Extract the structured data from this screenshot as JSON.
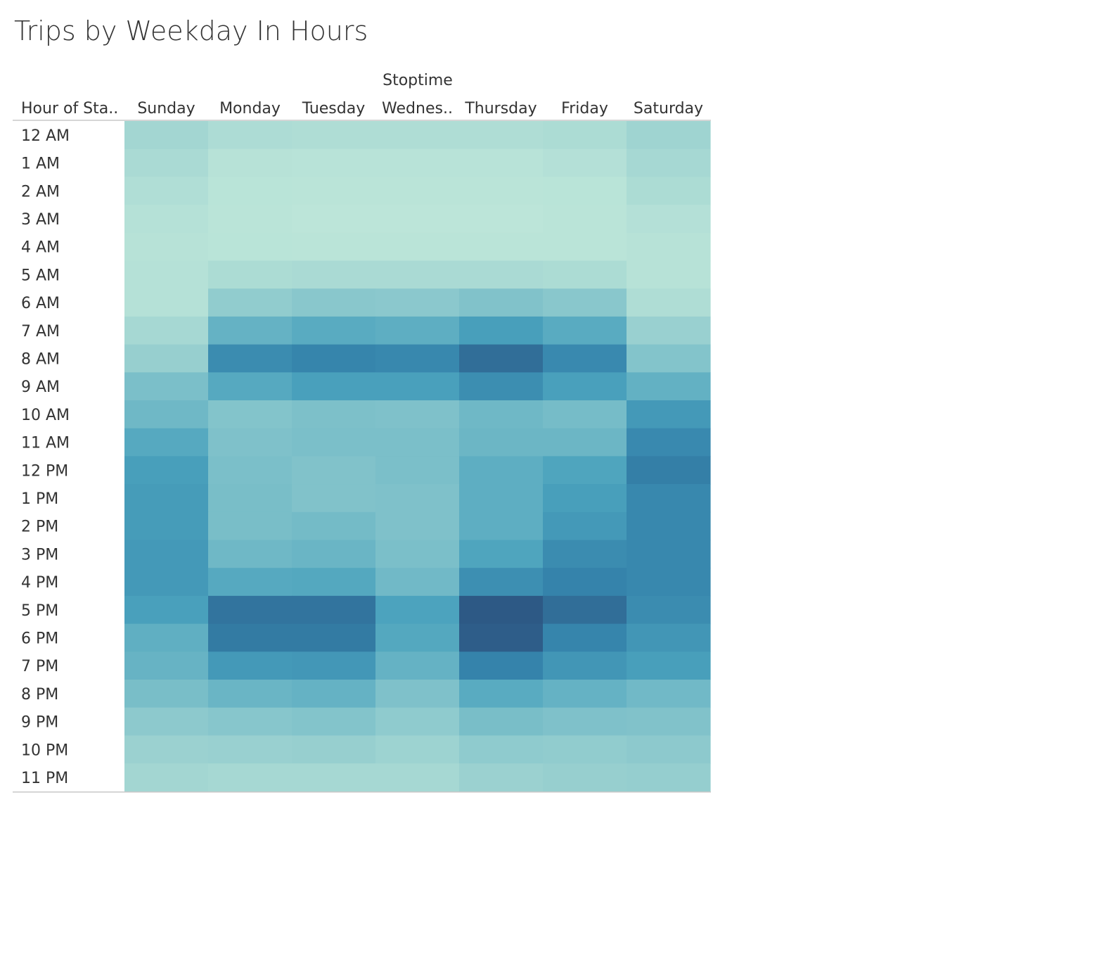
{
  "chart_data": {
    "type": "heatmap",
    "title": "Trips by Weekday In Hours",
    "column_group_label": "Stoptime",
    "row_field_label": "Hour of Sta..",
    "columns": [
      "Sunday",
      "Monday",
      "Tuesday",
      "Wednes..",
      "Thursday",
      "Friday",
      "Saturday"
    ],
    "rows": [
      "12 AM",
      "1 AM",
      "2 AM",
      "3 AM",
      "4 AM",
      "5 AM",
      "6 AM",
      "7 AM",
      "8 AM",
      "9 AM",
      "10 AM",
      "11 AM",
      "12 PM",
      "1 PM",
      "2 PM",
      "3 PM",
      "4 PM",
      "5 PM",
      "6 PM",
      "7 PM",
      "8 PM",
      "9 PM",
      "10 PM",
      "11 PM"
    ],
    "values": [
      [
        0.2,
        0.12,
        0.11,
        0.11,
        0.11,
        0.13,
        0.22
      ],
      [
        0.15,
        0.05,
        0.04,
        0.04,
        0.04,
        0.07,
        0.18
      ],
      [
        0.1,
        0.03,
        0.02,
        0.02,
        0.02,
        0.03,
        0.13
      ],
      [
        0.06,
        0.02,
        0.01,
        0.01,
        0.01,
        0.02,
        0.07
      ],
      [
        0.05,
        0.03,
        0.02,
        0.02,
        0.02,
        0.02,
        0.05
      ],
      [
        0.06,
        0.13,
        0.15,
        0.15,
        0.15,
        0.13,
        0.05
      ],
      [
        0.06,
        0.29,
        0.33,
        0.32,
        0.37,
        0.33,
        0.11
      ],
      [
        0.18,
        0.49,
        0.54,
        0.52,
        0.62,
        0.54,
        0.25
      ],
      [
        0.26,
        0.74,
        0.79,
        0.77,
        0.9,
        0.76,
        0.36
      ],
      [
        0.4,
        0.55,
        0.61,
        0.61,
        0.73,
        0.61,
        0.5
      ],
      [
        0.45,
        0.36,
        0.39,
        0.38,
        0.45,
        0.42,
        0.66
      ],
      [
        0.55,
        0.38,
        0.4,
        0.4,
        0.46,
        0.46,
        0.76
      ],
      [
        0.62,
        0.4,
        0.37,
        0.4,
        0.52,
        0.58,
        0.82
      ],
      [
        0.64,
        0.41,
        0.37,
        0.38,
        0.52,
        0.62,
        0.77
      ],
      [
        0.64,
        0.41,
        0.43,
        0.38,
        0.52,
        0.66,
        0.77
      ],
      [
        0.66,
        0.45,
        0.47,
        0.4,
        0.58,
        0.74,
        0.77
      ],
      [
        0.66,
        0.55,
        0.56,
        0.44,
        0.72,
        0.8,
        0.77
      ],
      [
        0.61,
        0.87,
        0.87,
        0.59,
        1.0,
        0.9,
        0.74
      ],
      [
        0.51,
        0.84,
        0.84,
        0.56,
        0.98,
        0.79,
        0.68
      ],
      [
        0.48,
        0.66,
        0.67,
        0.49,
        0.8,
        0.68,
        0.62
      ],
      [
        0.41,
        0.47,
        0.49,
        0.38,
        0.54,
        0.49,
        0.44
      ],
      [
        0.31,
        0.34,
        0.36,
        0.3,
        0.41,
        0.38,
        0.37
      ],
      [
        0.24,
        0.25,
        0.26,
        0.23,
        0.3,
        0.29,
        0.31
      ],
      [
        0.2,
        0.18,
        0.18,
        0.18,
        0.24,
        0.26,
        0.27
      ]
    ],
    "value_scale": "relative trip count (0 = fewest, 1 = most)",
    "color_range": [
      "#bde6d9",
      "#2d5985"
    ],
    "legend": "none"
  }
}
